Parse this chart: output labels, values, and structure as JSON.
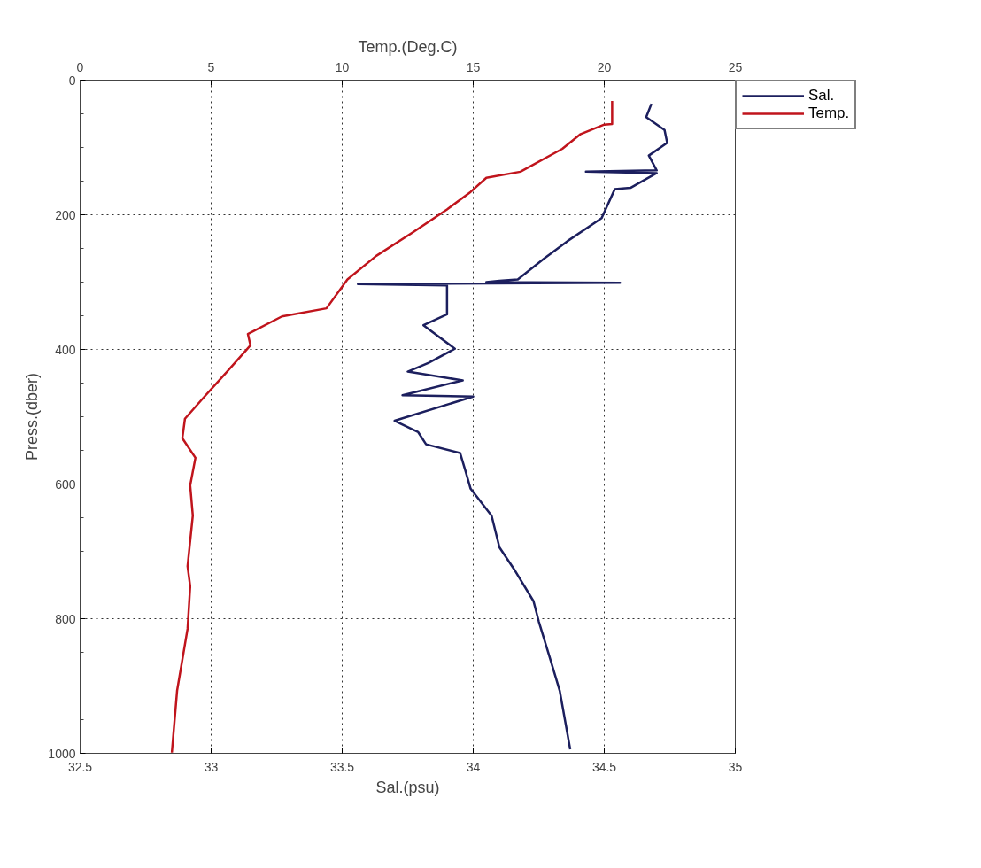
{
  "chart_data": {
    "type": "line",
    "xlabel": "Sal.(psu)",
    "x2label": "Temp.(Deg.C)",
    "ylabel": "Press.(dber)",
    "xlim": [
      32.5,
      35
    ],
    "xticks": [
      32.5,
      33,
      33.5,
      34,
      34.5,
      35
    ],
    "x2lim": [
      0,
      25
    ],
    "x2ticks": [
      0,
      5,
      10,
      15,
      20,
      25
    ],
    "ylim": [
      1000,
      0
    ],
    "yticks": [
      0,
      200,
      400,
      600,
      800,
      1000
    ],
    "grid": true,
    "legend": "right",
    "line_style": "solid",
    "marker": "none",
    "series": [
      {
        "name": "Sal.",
        "color": "#1c1f5e",
        "x": [
          34.68,
          34.66,
          34.73,
          34.74,
          34.67,
          34.7,
          34.43,
          34.7,
          34.6,
          34.54,
          34.49,
          34.36,
          34.27,
          34.17,
          34.1,
          34.05,
          34.56,
          33.56,
          33.9,
          33.9,
          33.81,
          33.93,
          33.83,
          33.75,
          33.96,
          33.73,
          34.0,
          33.7,
          33.79,
          33.82,
          33.95,
          33.97,
          33.99,
          34.07,
          34.1,
          34.16,
          34.23,
          34.25,
          34.29,
          34.33,
          34.37
        ],
        "values": [
          35,
          55,
          74,
          93,
          112,
          134,
          136,
          138,
          160,
          162,
          205,
          239,
          265,
          296,
          298,
          300,
          301,
          303,
          305,
          348,
          364,
          399,
          420,
          433,
          446,
          468,
          470,
          506,
          523,
          541,
          554,
          580,
          607,
          647,
          694,
          729,
          774,
          804,
          855,
          907,
          994
        ]
      },
      {
        "name": "Temp.",
        "color": "#c0141c",
        "axis": "x2",
        "x": [
          20.3,
          20.3,
          20.0,
          19.1,
          18.4,
          16.8,
          15.5,
          14.9,
          14.0,
          12.7,
          11.3,
          10.2,
          9.4,
          7.7,
          6.4,
          6.5,
          5.4,
          4.7,
          4.0,
          3.9,
          4.4,
          4.2,
          4.3,
          4.1,
          4.2,
          4.1,
          3.7,
          3.5
        ],
        "values": [
          31,
          65,
          66,
          80,
          102,
          136,
          145,
          166,
          192,
          226,
          261,
          296,
          339,
          351,
          377,
          394,
          442,
          472,
          503,
          532,
          561,
          602,
          647,
          722,
          752,
          815,
          907,
          999
        ]
      }
    ]
  }
}
